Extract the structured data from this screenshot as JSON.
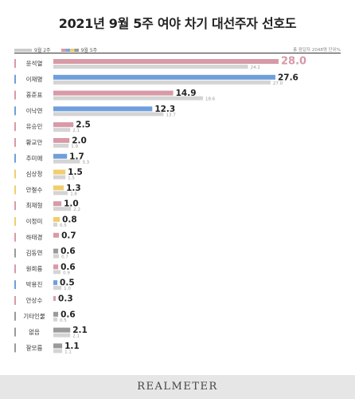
{
  "title": "2021년 9월 5주 여야 차기 대선주자 선호도",
  "legend": {
    "prev": "9월 2주",
    "cur": "9월 5주"
  },
  "note": "총 응답자 2048명 단위%",
  "footer": "REALMETER",
  "colors": {
    "pink": "#d79aa6",
    "blue": "#6f9fdb",
    "yellow": "#f0ce6e",
    "gray": "#9a9a9a",
    "prev": "#d4d4d4"
  },
  "chart_data": {
    "type": "bar",
    "orientation": "horizontal",
    "categories": [
      "윤석열",
      "이재명",
      "홍준표",
      "이낙연",
      "유승민",
      "황교안",
      "추미애",
      "심상정",
      "안철수",
      "최재형",
      "이정미",
      "하태경",
      "김동연",
      "원희룡",
      "박용진",
      "안상수",
      "기타인물",
      "없음",
      "잘모름"
    ],
    "series": [
      {
        "name": "9월 5주",
        "values": [
          28.0,
          27.6,
          14.9,
          12.3,
          2.5,
          2.0,
          1.7,
          1.5,
          1.3,
          1.0,
          0.8,
          0.7,
          0.6,
          0.6,
          0.5,
          0.3,
          0.6,
          2.1,
          1.1
        ],
        "labels": [
          "28.0",
          "27.6",
          "14.9",
          "12.3",
          "2.5",
          "2.0",
          "1.7",
          "1.5",
          "1.3",
          "1.0",
          "0.8",
          "0.7",
          "0.6",
          "0.6",
          "0.5",
          "0.3",
          "0.6",
          "2.1",
          "1.1"
        ],
        "colors": [
          "pink",
          "blue",
          "pink",
          "blue",
          "pink",
          "pink",
          "blue",
          "yellow",
          "yellow",
          "pink",
          "yellow",
          "pink",
          "gray",
          "pink",
          "blue",
          "pink",
          "gray",
          "gray",
          "gray"
        ]
      },
      {
        "name": "9월 2주",
        "values": [
          24.2,
          27.0,
          18.6,
          13.7,
          2.1,
          1.9,
          3.3,
          1.5,
          1.8,
          2.2,
          0.5,
          null,
          0.7,
          0.9,
          1.0,
          null,
          0.5,
          2.1,
          1.1
        ],
        "labels": [
          "24.2",
          "27.0",
          "18.6",
          "13.7",
          "2.1",
          "1.9",
          "3.3",
          "1.5",
          "1.8",
          "2.2",
          "0.5",
          "",
          "0.7",
          "0.9",
          "1.0",
          "",
          "0.5",
          "2.1",
          "1.1"
        ]
      }
    ],
    "xlim": [
      0,
      28
    ],
    "grid": false,
    "legend_position": "top-left"
  }
}
